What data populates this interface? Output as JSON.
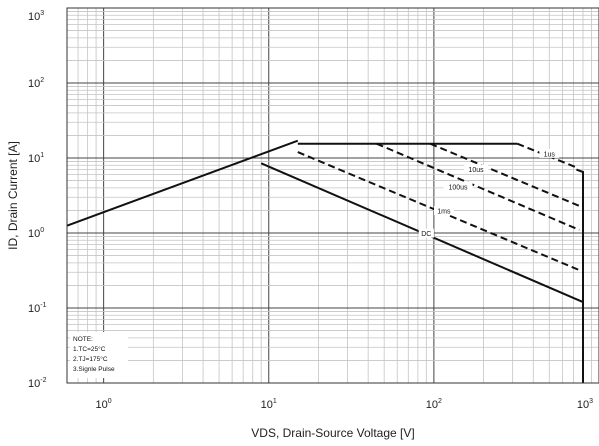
{
  "chart_data": {
    "type": "line",
    "title": "",
    "xlabel": "VDS, Drain-Source Voltage [V]",
    "ylabel": "ID, Drain Current [A]",
    "x_scale": "log",
    "y_scale": "log",
    "xlim": [
      0.6,
      1000
    ],
    "ylim": [
      0.01,
      1000
    ],
    "grid": true,
    "x_ticks": [
      {
        "base": "10",
        "exp": "0",
        "value": 1
      },
      {
        "base": "10",
        "exp": "1",
        "value": 10
      },
      {
        "base": "10",
        "exp": "2",
        "value": 100
      },
      {
        "base": "10",
        "exp": "3",
        "value": 1000
      }
    ],
    "y_ticks": [
      {
        "base": "10",
        "exp": "3",
        "value": 1000
      },
      {
        "base": "10",
        "exp": "2",
        "value": 100
      },
      {
        "base": "10",
        "exp": "1",
        "value": 10
      },
      {
        "base": "10",
        "exp": "0",
        "value": 1
      },
      {
        "base": "10",
        "exp": "-1",
        "value": 0.1
      },
      {
        "base": "10",
        "exp": "-2",
        "value": 0.01
      }
    ],
    "series": [
      {
        "name": "",
        "style": "solid",
        "points": [
          [
            0.6,
            1.25
          ],
          [
            15,
            17
          ]
        ]
      },
      {
        "name": "DC",
        "style": "solid",
        "points": [
          [
            9,
            8.5
          ],
          [
            800,
            0.12
          ]
        ]
      },
      {
        "name": "1us",
        "style": "solid",
        "points": [
          [
            15,
            15.5
          ],
          [
            320,
            15.5
          ]
        ]
      },
      {
        "name": "1us",
        "style": "dashed",
        "points": [
          [
            320,
            15.5
          ],
          [
            730,
            7.5
          ]
        ]
      },
      {
        "name": "",
        "style": "solid",
        "points": [
          [
            730,
            7
          ],
          [
            800,
            6.5
          ],
          [
            800,
            0.1
          ],
          [
            800,
            0.01
          ]
        ]
      },
      {
        "name": "10us",
        "style": "dashed",
        "points": [
          [
            95,
            15.5
          ],
          [
            760,
            2.3
          ]
        ]
      },
      {
        "name": "100us",
        "style": "dashed",
        "points": [
          [
            45,
            15.5
          ],
          [
            760,
            1.1
          ]
        ]
      },
      {
        "name": "1ms",
        "style": "dashed",
        "points": [
          [
            15,
            12
          ],
          [
            760,
            0.32
          ]
        ]
      }
    ],
    "annotations": [
      {
        "text": "1us",
        "x": 500,
        "y": 11
      },
      {
        "text": "10us",
        "x": 180,
        "y": 6.8
      },
      {
        "text": "100us",
        "x": 140,
        "y": 4
      },
      {
        "text": "1ms",
        "x": 115,
        "y": 1.9
      },
      {
        "text": "DC",
        "x": 90,
        "y": 0.95
      }
    ],
    "note": {
      "lines": [
        "NOTE:",
        "1.TC=25°C",
        "2.TJ=175°C",
        "3.Signle Pulse"
      ]
    }
  }
}
